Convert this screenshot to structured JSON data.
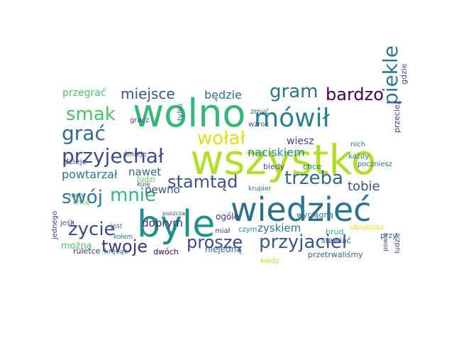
{
  "word_cloud": {
    "words": [
      {
        "text": "wolno",
        "color": "#35b779"
      },
      {
        "text": "wszystko",
        "color": "#b5de2b"
      },
      {
        "text": "byle",
        "color": "#21918c"
      },
      {
        "text": "wiedzieć",
        "color": "#2c728e"
      },
      {
        "text": "mówił",
        "color": "#26828e"
      },
      {
        "text": "przyjechał",
        "color": "#3e4989"
      },
      {
        "text": "piekle",
        "color": "#2a788e"
      },
      {
        "text": "smak",
        "color": "#4ac16d"
      },
      {
        "text": "grać",
        "color": "#31688e"
      },
      {
        "text": "gram",
        "color": "#2c728e"
      },
      {
        "text": "bardzo",
        "color": "#440154"
      },
      {
        "text": "miejsce",
        "color": "#3b528b"
      },
      {
        "text": "wołał",
        "color": "#dde318"
      },
      {
        "text": "stamtąd",
        "color": "#3b528b"
      },
      {
        "text": "trzeba",
        "color": "#31688e"
      },
      {
        "text": "swój",
        "color": "#2a788e"
      },
      {
        "text": "mnie",
        "color": "#35b779"
      },
      {
        "text": "życie",
        "color": "#3e4989"
      },
      {
        "text": "przyjaciel",
        "color": "#38588c"
      },
      {
        "text": "proszę",
        "color": "#3e4989"
      },
      {
        "text": "twoje",
        "color": "#46327e"
      },
      {
        "text": "przegrać",
        "color": "#4ac16d"
      },
      {
        "text": "będzie",
        "color": "#2c728e"
      },
      {
        "text": "naciskiem",
        "color": "#21918c"
      },
      {
        "text": "nawet",
        "color": "#31688e"
      },
      {
        "text": "pewno",
        "color": "#3b528b"
      },
      {
        "text": "powtarzał",
        "color": "#2a788e"
      },
      {
        "text": "tobie",
        "color": "#3b528b"
      },
      {
        "text": "dobrym",
        "color": "#472d7b"
      },
      {
        "text": "można",
        "color": "#4ac16d"
      },
      {
        "text": "zyskiem",
        "color": "#2c728e"
      },
      {
        "text": "gdzie",
        "color": "#3b528b"
      },
      {
        "text": "przecież",
        "color": "#443983"
      },
      {
        "text": "zmyć",
        "color": "#31688e"
      },
      {
        "text": "wzrok",
        "color": "#3b528b"
      },
      {
        "text": "wiesz",
        "color": "#414487"
      },
      {
        "text": "nich",
        "color": "#31688e"
      },
      {
        "text": "każdy",
        "color": "#2a788e"
      },
      {
        "text": "poczniesz",
        "color": "#31688e"
      },
      {
        "text": "chce",
        "color": "#2c728e"
      },
      {
        "text": "biedy",
        "color": "#3b528b"
      },
      {
        "text": "tylko",
        "color": "#2a788e"
      },
      {
        "text": "gracz",
        "color": "#3e4989"
      },
      {
        "text": "dzieje",
        "color": "#3b528b"
      },
      {
        "text": "śmieje",
        "color": "#3e4989"
      },
      {
        "text": "ludzi",
        "color": "#6ece58"
      },
      {
        "text": "kuię",
        "color": "#3b528b"
      },
      {
        "text": "ogóle",
        "color": "#472d7b"
      },
      {
        "text": "miał",
        "color": "#443983"
      },
      {
        "text": "krupier",
        "color": "#2c728e"
      },
      {
        "text": "wyciągną",
        "color": "#2a788e"
      },
      {
        "text": "brud",
        "color": "#35b779"
      },
      {
        "text": "przy",
        "color": "#2c728e"
      },
      {
        "text": "puszcza",
        "color": "#414487"
      },
      {
        "text": "ruch",
        "color": "#31688e"
      },
      {
        "text": "chcę",
        "color": "#6ece58"
      },
      {
        "text": "jeśli",
        "color": "#3b528b"
      },
      {
        "text": "jest",
        "color": "#31688e"
      },
      {
        "text": "kołem",
        "color": "#2a788e"
      },
      {
        "text": "jednego",
        "color": "#443983"
      },
      {
        "text": "ruletce",
        "color": "#472d7b"
      },
      {
        "text": "kręcąc",
        "color": "#2c728e"
      },
      {
        "text": "dwóch",
        "color": "#440154"
      },
      {
        "text": "niejedną",
        "color": "#31688e"
      },
      {
        "text": "czym",
        "color": "#21918c"
      },
      {
        "text": "stawiać",
        "color": "#3b528b"
      },
      {
        "text": "ubrudzisz",
        "color": "#dde318"
      },
      {
        "text": "powie",
        "color": "#3b528b"
      },
      {
        "text": "ludzie",
        "color": "#3e4989"
      },
      {
        "text": "kiedy",
        "color": "#b5de2b"
      },
      {
        "text": "przetrwaliśmy",
        "color": "#31688e"
      }
    ]
  }
}
